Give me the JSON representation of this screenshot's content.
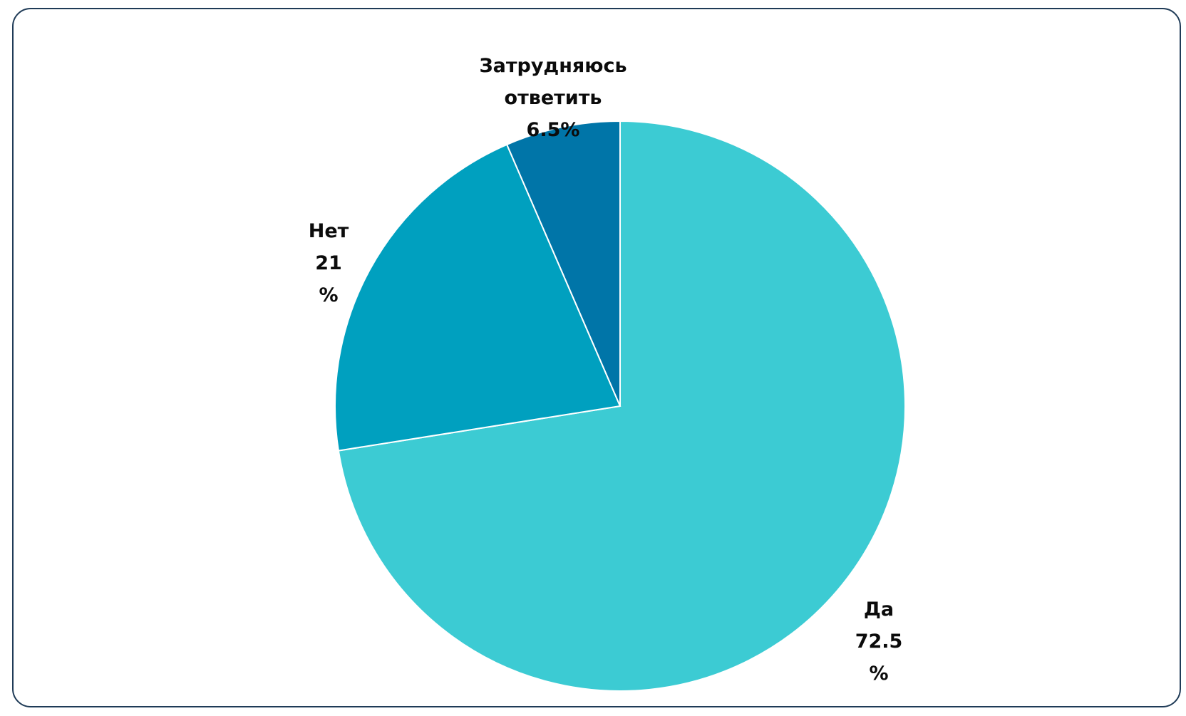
{
  "chart_data": {
    "type": "pie",
    "slices": [
      {
        "label": "Да",
        "value": 72.5,
        "value_text": "72.5",
        "unit_text": "%",
        "color": "#3ccbd3"
      },
      {
        "label": "Нет",
        "value": 21,
        "value_text": "21",
        "unit_text": "%",
        "color": "#00a0bf"
      },
      {
        "label": "Затрудняюсь ответить",
        "label_line1": "Затрудняюсь",
        "label_line2": "ответить",
        "value": 6.5,
        "value_text": "6.5%",
        "color": "#0075a8"
      }
    ],
    "start_angle": "12 o'clock",
    "direction": "clockwise",
    "legend": "none"
  }
}
